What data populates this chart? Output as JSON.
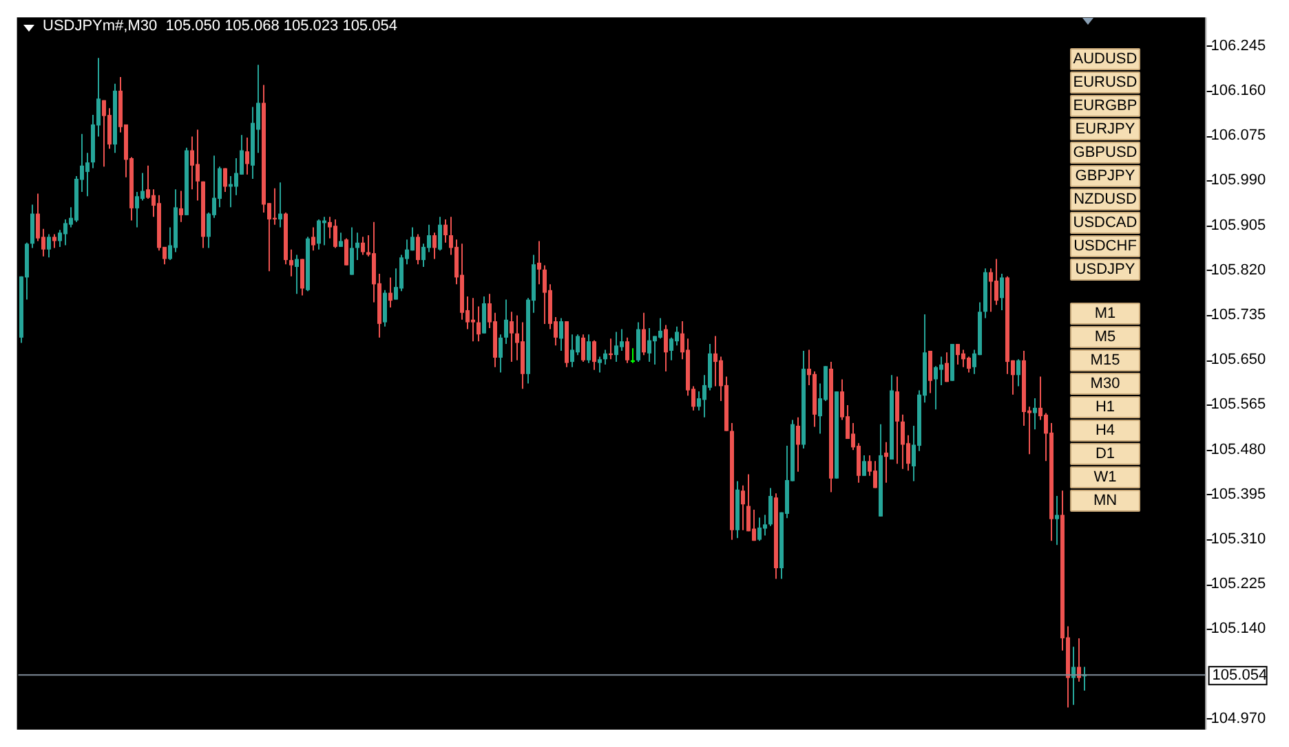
{
  "chart_data": {
    "type": "candlestick",
    "title": "USDJPYm#,M30  105.050 105.068 105.023 105.054",
    "categories": [
      null,
      null,
      null,
      null,
      null,
      null,
      null,
      null,
      null,
      null,
      null,
      null,
      null,
      null,
      null,
      null,
      null,
      null,
      null,
      null,
      null,
      null,
      null,
      null,
      null,
      null,
      null,
      null,
      null,
      null,
      null,
      null,
      null,
      null,
      null,
      null,
      null,
      null,
      null,
      null,
      null,
      null,
      null,
      null,
      null,
      null,
      null,
      null,
      null,
      null,
      null,
      null,
      null,
      null,
      null,
      null,
      null,
      null,
      null,
      null,
      null,
      null,
      null,
      null,
      null,
      null,
      null,
      null,
      null,
      null,
      null,
      null,
      null,
      null,
      null,
      null,
      null,
      null,
      null,
      null,
      null,
      null,
      null,
      null,
      null,
      null,
      null,
      null,
      null,
      null,
      null,
      null,
      null,
      null,
      null,
      null,
      null,
      null,
      null,
      null,
      null,
      null,
      null,
      null,
      null,
      null,
      null,
      null,
      null,
      null,
      null,
      null,
      null,
      null,
      null,
      null,
      null,
      null,
      null,
      null,
      null,
      null,
      null,
      null,
      null,
      null,
      null,
      null,
      null,
      null,
      null,
      null,
      null,
      null,
      null,
      null,
      null,
      null,
      null,
      null,
      null,
      null,
      null,
      null,
      null,
      null,
      null,
      null,
      null,
      null,
      null,
      null,
      null,
      null,
      null,
      null,
      null,
      null,
      null,
      null,
      null,
      null,
      null,
      null,
      null,
      null,
      null,
      null,
      null,
      null,
      null,
      null,
      null,
      null,
      null,
      null,
      null,
      null,
      null,
      null,
      null,
      null,
      null,
      null,
      null,
      null,
      null,
      null,
      null,
      null,
      null,
      null,
      null,
      null,
      null,
      null,
      null,
      null,
      null,
      null,
      null,
      null,
      null,
      null,
      null,
      null,
      null,
      null,
      null,
      null,
      null,
      null,
      null,
      null,
      null
    ],
    "ohlc": [
      [
        105.692,
        105.808,
        105.682,
        105.808
      ],
      [
        105.806,
        105.872,
        105.764,
        105.87
      ],
      [
        105.87,
        105.944,
        105.862,
        105.927
      ],
      [
        105.927,
        105.965,
        105.875,
        105.88
      ],
      [
        105.883,
        105.898,
        105.846,
        105.859
      ],
      [
        105.859,
        105.888,
        105.844,
        105.883
      ],
      [
        105.883,
        105.888,
        105.862,
        105.875
      ],
      [
        105.875,
        105.896,
        105.864,
        105.891
      ],
      [
        105.888,
        105.916,
        105.867,
        105.909
      ],
      [
        105.906,
        105.939,
        105.901,
        105.919
      ],
      [
        105.914,
        105.998,
        105.911,
        105.993
      ],
      [
        105.991,
        106.078,
        105.968,
        106.018
      ],
      [
        106.006,
        106.042,
        105.96,
        106.024
      ],
      [
        106.024,
        106.114,
        106.013,
        106.096
      ],
      [
        106.094,
        106.222,
        106.073,
        106.145
      ],
      [
        106.142,
        106.142,
        106.016,
        106.112
      ],
      [
        106.114,
        106.127,
        106.05,
        106.058
      ],
      [
        106.058,
        106.173,
        106.042,
        106.16
      ],
      [
        106.16,
        106.186,
        106.081,
        106.091
      ],
      [
        106.096,
        106.096,
        105.996,
        106.029
      ],
      [
        106.032,
        106.034,
        105.914,
        105.937
      ],
      [
        105.937,
        105.968,
        105.901,
        105.96
      ],
      [
        105.955,
        106.004,
        105.952,
        105.97
      ],
      [
        105.973,
        106.018,
        105.955,
        105.957
      ],
      [
        105.962,
        105.973,
        105.921,
        105.942
      ],
      [
        105.947,
        105.962,
        105.857,
        105.862
      ],
      [
        105.864,
        105.864,
        105.831,
        105.841
      ],
      [
        105.841,
        105.901,
        105.839,
        105.867
      ],
      [
        105.862,
        105.973,
        105.854,
        105.939
      ],
      [
        105.937,
        105.97,
        105.911,
        105.924
      ],
      [
        105.924,
        106.052,
        105.924,
        106.047
      ],
      [
        106.047,
        106.073,
        105.973,
        106.018
      ],
      [
        106.021,
        106.086,
        105.952,
        105.988
      ],
      [
        105.988,
        105.988,
        105.862,
        105.883
      ],
      [
        105.883,
        105.929,
        105.862,
        105.927
      ],
      [
        105.924,
        106.037,
        105.919,
        105.957
      ],
      [
        105.955,
        106.016,
        105.939,
        106.013
      ],
      [
        106.013,
        106.013,
        105.968,
        105.978
      ],
      [
        105.978,
        105.998,
        105.939,
        105.983
      ],
      [
        105.978,
        106.032,
        105.962,
        106.004
      ],
      [
        106.001,
        106.076,
        106.001,
        106.047
      ],
      [
        106.045,
        106.071,
        106.001,
        106.021
      ],
      [
        106.018,
        106.129,
        105.993,
        106.099
      ],
      [
        106.086,
        106.209,
        106.042,
        106.137
      ],
      [
        106.137,
        106.171,
        105.929,
        105.944
      ],
      [
        105.947,
        105.947,
        105.818,
        105.916
      ],
      [
        105.919,
        105.975,
        105.906,
        105.916
      ],
      [
        105.916,
        105.986,
        105.901,
        105.927
      ],
      [
        105.927,
        105.929,
        105.831,
        105.839
      ],
      [
        105.839,
        105.859,
        105.808,
        105.829
      ],
      [
        105.826,
        105.849,
        105.775,
        105.841
      ],
      [
        105.841,
        105.841,
        105.772,
        105.785
      ],
      [
        105.782,
        105.883,
        105.78,
        105.88
      ],
      [
        105.883,
        105.901,
        105.857,
        105.867
      ],
      [
        105.87,
        105.916,
        105.859,
        105.914
      ],
      [
        105.909,
        105.921,
        105.867,
        105.914
      ],
      [
        105.911,
        105.921,
        105.88,
        105.901
      ],
      [
        105.904,
        105.916,
        105.862,
        105.864
      ],
      [
        105.864,
        105.891,
        105.864,
        105.875
      ],
      [
        105.878,
        105.88,
        105.829,
        105.829
      ],
      [
        105.811,
        105.901,
        105.811,
        105.862
      ],
      [
        105.862,
        105.891,
        105.839,
        105.872
      ],
      [
        105.872,
        105.883,
        105.849,
        105.854
      ],
      [
        105.854,
        105.886,
        105.846,
        105.849
      ],
      [
        105.852,
        105.911,
        105.759,
        105.793
      ],
      [
        105.795,
        105.813,
        105.692,
        105.718
      ],
      [
        105.721,
        105.782,
        105.713,
        105.777
      ],
      [
        105.777,
        105.806,
        105.749,
        105.762
      ],
      [
        105.764,
        105.823,
        105.764,
        105.788
      ],
      [
        105.785,
        105.849,
        105.78,
        105.844
      ],
      [
        105.841,
        105.878,
        105.831,
        105.859
      ],
      [
        105.857,
        105.901,
        105.857,
        105.883
      ],
      [
        105.883,
        105.888,
        105.831,
        105.839
      ],
      [
        105.839,
        105.87,
        105.826,
        105.864
      ],
      [
        105.862,
        105.906,
        105.854,
        105.886
      ],
      [
        105.886,
        105.891,
        105.841,
        105.862
      ],
      [
        105.859,
        105.921,
        105.857,
        105.906
      ],
      [
        105.906,
        105.916,
        105.872,
        105.886
      ],
      [
        105.886,
        105.921,
        105.849,
        105.862
      ],
      [
        105.864,
        105.878,
        105.793,
        105.806
      ],
      [
        105.811,
        105.87,
        105.726,
        105.739
      ],
      [
        105.744,
        105.77,
        105.708,
        105.721
      ],
      [
        105.726,
        105.767,
        105.685,
        105.721
      ],
      [
        105.721,
        105.751,
        105.685,
        105.698
      ],
      [
        105.7,
        105.77,
        105.7,
        105.757
      ],
      [
        105.757,
        105.775,
        105.71,
        105.721
      ],
      [
        105.723,
        105.739,
        105.636,
        105.654
      ],
      [
        105.654,
        105.698,
        105.626,
        105.692
      ],
      [
        105.692,
        105.764,
        105.68,
        105.726
      ],
      [
        105.723,
        105.741,
        105.646,
        105.7
      ],
      [
        105.7,
        105.734,
        105.649,
        105.682
      ],
      [
        105.685,
        105.721,
        105.595,
        105.623
      ],
      [
        105.623,
        105.767,
        105.605,
        105.764
      ],
      [
        105.762,
        105.849,
        105.739,
        105.831
      ],
      [
        105.834,
        105.875,
        105.793,
        105.821
      ],
      [
        105.821,
        105.829,
        105.718,
        105.777
      ],
      [
        105.782,
        105.793,
        105.708,
        105.718
      ],
      [
        105.723,
        105.731,
        105.677,
        105.692
      ],
      [
        105.69,
        105.729,
        105.667,
        105.723
      ],
      [
        105.723,
        105.723,
        105.636,
        105.644
      ],
      [
        105.646,
        105.698,
        105.636,
        105.669
      ],
      [
        105.664,
        105.698,
        105.659,
        105.695
      ],
      [
        105.692,
        105.698,
        105.646,
        105.649
      ],
      [
        105.649,
        105.698,
        105.644,
        105.685
      ],
      [
        105.685,
        105.687,
        105.631,
        105.646
      ],
      [
        105.644,
        105.656,
        105.626,
        105.651
      ],
      [
        105.651,
        105.669,
        105.641,
        105.662
      ],
      [
        105.662,
        105.69,
        105.651,
        105.659
      ],
      [
        105.659,
        105.703,
        105.646,
        105.677
      ],
      [
        105.674,
        105.708,
        105.667,
        105.685
      ],
      [
        105.685,
        105.692,
        105.644,
        105.649
      ],
      [
        105.646,
        105.672,
        105.644,
        105.649
      ],
      [
        105.649,
        105.721,
        105.646,
        105.708
      ],
      [
        105.708,
        105.739,
        105.659,
        105.664
      ],
      [
        105.662,
        105.71,
        105.646,
        105.687
      ],
      [
        105.685,
        105.695,
        105.641,
        105.695
      ],
      [
        105.692,
        105.729,
        105.69,
        105.705
      ],
      [
        105.708,
        105.716,
        105.628,
        105.664
      ],
      [
        105.667,
        105.692,
        105.649,
        105.69
      ],
      [
        105.685,
        105.713,
        105.677,
        105.703
      ],
      [
        105.7,
        105.723,
        105.651,
        105.664
      ],
      [
        105.669,
        105.69,
        105.582,
        105.592
      ],
      [
        105.595,
        105.6,
        105.554,
        105.561
      ],
      [
        105.561,
        105.59,
        105.554,
        105.577
      ],
      [
        105.574,
        105.621,
        105.541,
        105.602
      ],
      [
        105.597,
        105.68,
        105.592,
        105.662
      ],
      [
        105.662,
        105.695,
        105.6,
        105.646
      ],
      [
        105.649,
        105.656,
        105.572,
        105.6
      ],
      [
        105.602,
        105.618,
        105.515,
        105.515
      ],
      [
        105.515,
        105.53,
        105.309,
        105.327
      ],
      [
        105.327,
        105.42,
        105.312,
        105.404
      ],
      [
        105.402,
        105.412,
        105.327,
        105.376
      ],
      [
        105.373,
        105.433,
        105.325,
        105.325
      ],
      [
        105.33,
        105.366,
        105.307,
        105.307
      ],
      [
        105.309,
        105.351,
        105.307,
        105.332
      ],
      [
        105.33,
        105.356,
        105.317,
        105.338
      ],
      [
        105.338,
        105.407,
        105.335,
        105.392
      ],
      [
        105.389,
        105.397,
        105.235,
        105.255
      ],
      [
        105.255,
        105.361,
        105.235,
        105.361
      ],
      [
        105.358,
        105.487,
        105.35,
        105.422
      ],
      [
        105.42,
        105.536,
        105.42,
        105.528
      ],
      [
        105.525,
        105.541,
        105.438,
        105.489
      ],
      [
        105.489,
        105.667,
        105.482,
        105.633
      ],
      [
        105.633,
        105.669,
        105.602,
        105.621
      ],
      [
        105.623,
        105.628,
        105.523,
        105.546
      ],
      [
        105.543,
        105.605,
        105.51,
        105.577
      ],
      [
        105.574,
        105.638,
        105.572,
        105.638
      ],
      [
        105.633,
        105.646,
        105.399,
        105.425
      ],
      [
        105.425,
        105.59,
        105.425,
        105.59
      ],
      [
        105.59,
        105.613,
        105.536,
        105.541
      ],
      [
        105.543,
        105.564,
        105.5,
        105.5
      ],
      [
        105.51,
        105.53,
        105.479,
        105.484
      ],
      [
        105.487,
        105.492,
        105.417,
        105.43
      ],
      [
        105.43,
        105.469,
        105.43,
        105.458
      ],
      [
        105.458,
        105.469,
        105.43,
        105.438
      ],
      [
        105.44,
        105.458,
        105.407,
        105.407
      ],
      [
        105.353,
        105.528,
        105.353,
        105.469
      ],
      [
        105.474,
        105.494,
        105.417,
        105.466
      ],
      [
        105.461,
        105.621,
        105.461,
        105.592
      ],
      [
        105.59,
        105.618,
        105.453,
        105.533
      ],
      [
        105.533,
        105.546,
        105.443,
        105.489
      ],
      [
        105.492,
        105.507,
        105.44,
        105.453
      ],
      [
        105.448,
        105.525,
        105.42,
        105.489
      ],
      [
        105.487,
        105.592,
        105.477,
        105.584
      ],
      [
        105.582,
        105.736,
        105.569,
        105.664
      ],
      [
        105.667,
        105.667,
        105.587,
        105.61
      ],
      [
        105.613,
        105.638,
        105.556,
        105.636
      ],
      [
        105.631,
        105.656,
        105.602,
        105.641
      ],
      [
        105.644,
        105.664,
        105.608,
        105.608
      ],
      [
        105.61,
        105.68,
        105.61,
        105.68
      ],
      [
        105.68,
        105.68,
        105.641,
        105.659
      ],
      [
        105.662,
        105.669,
        105.636,
        105.651
      ],
      [
        105.654,
        105.656,
        105.626,
        105.633
      ],
      [
        105.636,
        105.669,
        105.623,
        105.662
      ],
      [
        105.659,
        105.759,
        105.659,
        105.741
      ],
      [
        105.741,
        105.823,
        105.729,
        105.816
      ],
      [
        105.816,
        105.823,
        105.741,
        105.798
      ],
      [
        105.8,
        105.841,
        105.754,
        105.762
      ],
      [
        105.767,
        105.813,
        105.744,
        105.806
      ],
      [
        105.806,
        105.808,
        105.623,
        105.646
      ],
      [
        105.649,
        105.649,
        105.584,
        105.621
      ],
      [
        105.621,
        105.651,
        105.6,
        105.649
      ],
      [
        105.649,
        105.667,
        105.525,
        105.551
      ],
      [
        105.554,
        105.561,
        105.471,
        105.549
      ],
      [
        105.549,
        105.577,
        105.518,
        105.559
      ],
      [
        105.559,
        105.618,
        105.536,
        105.543
      ],
      [
        105.546,
        105.549,
        105.458,
        105.51
      ],
      [
        105.512,
        105.53,
        105.307,
        105.348
      ],
      [
        105.348,
        105.392,
        105.299,
        105.356
      ],
      [
        105.356,
        105.402,
        105.099,
        105.122
      ],
      [
        105.124,
        105.145,
        104.991,
        105.047
      ],
      [
        105.047,
        105.106,
        104.996,
        105.068
      ],
      [
        105.068,
        105.122,
        105.04,
        105.047
      ],
      [
        105.05,
        105.068,
        105.023,
        105.054
      ],
      null,
      null,
      null,
      null,
      null,
      null,
      null,
      null,
      null,
      null,
      null,
      null,
      null,
      null,
      null,
      null,
      null,
      null,
      null,
      null,
      null
    ],
    "colors": [
      "#26a69a",
      "#26a69a",
      "#26a69a",
      "#ef5350",
      "#ef5350",
      "#26a69a",
      "#ef5350",
      "#26a69a",
      "#26a69a",
      "#26a69a",
      "#26a69a",
      "#26a69a",
      "#26a69a",
      "#26a69a",
      "#26a69a",
      "#ef5350",
      "#ef5350",
      "#26a69a",
      "#ef5350",
      "#ef5350",
      "#ef5350",
      "#26a69a",
      "#26a69a",
      "#ef5350",
      "#ef5350",
      "#ef5350",
      "#ef5350",
      "#26a69a",
      "#26a69a",
      "#ef5350",
      "#26a69a",
      "#ef5350",
      "#ef5350",
      "#ef5350",
      "#26a69a",
      "#26a69a",
      "#26a69a",
      "#ef5350",
      "#26a69a",
      "#26a69a",
      "#26a69a",
      "#ef5350",
      "#26a69a",
      "#26a69a",
      "#ef5350",
      "#ef5350",
      "#ef5350",
      "#26a69a",
      "#ef5350",
      "#ef5350",
      "#26a69a",
      "#ef5350",
      "#26a69a",
      "#ef5350",
      "#26a69a",
      "#26a69a",
      "#ef5350",
      "#ef5350",
      "#26a69a",
      "#ef5350",
      "#26a69a",
      "#26a69a",
      "#ef5350",
      "#ef5350",
      "#ef5350",
      "#ef5350",
      "#26a69a",
      "#ef5350",
      "#26a69a",
      "#26a69a",
      "#26a69a",
      "#26a69a",
      "#ef5350",
      "#26a69a",
      "#26a69a",
      "#ef5350",
      "#26a69a",
      "#ef5350",
      "#ef5350",
      "#ef5350",
      "#ef5350",
      "#ef5350",
      "#ef5350",
      "#ef5350",
      "#26a69a",
      "#ef5350",
      "#ef5350",
      "#26a69a",
      "#26a69a",
      "#ef5350",
      "#ef5350",
      "#ef5350",
      "#26a69a",
      "#26a69a",
      "#ef5350",
      "#ef5350",
      "#ef5350",
      "#ef5350",
      "#26a69a",
      "#ef5350",
      "#26a69a",
      "#26a69a",
      "#ef5350",
      "#26a69a",
      "#ef5350",
      "#26a69a",
      "#26a69a",
      "#ef5350",
      "#26a69a",
      "#26a69a",
      "#ef5350",
      "#00ff00",
      "#26a69a",
      "#ef5350",
      "#26a69a",
      "#26a69a",
      "#26a69a",
      "#ef5350",
      "#26a69a",
      "#26a69a",
      "#ef5350",
      "#ef5350",
      "#ef5350",
      "#26a69a",
      "#26a69a",
      "#26a69a",
      "#ef5350",
      "#ef5350",
      "#ef5350",
      "#ef5350",
      "#26a69a",
      "#ef5350",
      "#ef5350",
      "#ef5350",
      "#26a69a",
      "#26a69a",
      "#26a69a",
      "#ef5350",
      "#26a69a",
      "#26a69a",
      "#26a69a",
      "#ef5350",
      "#26a69a",
      "#ef5350",
      "#ef5350",
      "#26a69a",
      "#26a69a",
      "#ef5350",
      "#26a69a",
      "#ef5350",
      "#ef5350",
      "#ef5350",
      "#ef5350",
      "#26a69a",
      "#ef5350",
      "#ef5350",
      "#26a69a",
      "#ef5350",
      "#26a69a",
      "#ef5350",
      "#ef5350",
      "#ef5350",
      "#26a69a",
      "#26a69a",
      "#26a69a",
      "#ef5350",
      "#26a69a",
      "#26a69a",
      "#ef5350",
      "#26a69a",
      "#ef5350",
      "#ef5350",
      "#ef5350",
      "#26a69a",
      "#26a69a",
      "#26a69a",
      "#ef5350",
      "#ef5350",
      "#26a69a",
      "#ef5350",
      "#ef5350",
      "#26a69a",
      "#ef5350",
      "#ef5350",
      "#26a69a",
      "#ef5350",
      "#ef5350",
      "#ef5350",
      "#26a69a",
      "#ef5350",
      "#ef5350",
      "#26a69a",
      "#ef5350",
      "#26a69a",
      null,
      null,
      null,
      null,
      null,
      null,
      null,
      null,
      null,
      null,
      null,
      null,
      null,
      null,
      null,
      null,
      null,
      null,
      null,
      null,
      null
    ],
    "ylim": [
      104.949,
      106.299
    ],
    "yticks": [
      106.245,
      {
        "value": 106.16,
        "label": "106.160"
      },
      106.075,
      {
        "value": 105.99,
        "label": "105.990"
      },
      105.905,
      {
        "value": 105.82,
        "label": "105.820"
      },
      105.735,
      {
        "value": 105.65,
        "label": "105.650"
      },
      105.565,
      {
        "value": 105.48,
        "label": "105.480"
      },
      105.395,
      {
        "value": 105.31,
        "label": "105.310"
      },
      105.225,
      {
        "value": 105.14,
        "label": "105.140"
      },
      {
        "value": 104.97,
        "label": "104.970"
      }
    ],
    "tick_labels": "y",
    "grid": false,
    "legend": false,
    "ref_lines": [
      {
        "axis": "y",
        "value": 105.054,
        "label": "105.054",
        "color": "#7f8c99"
      }
    ],
    "annotations": [
      "AUDUSD",
      "EURUSD",
      "EURGBP",
      "EURJPY",
      "GBPUSD",
      "GBPJPY",
      "NZDUSD",
      "USDCAD",
      "USDCHF",
      "USDJPY",
      "M1",
      "M5",
      "M15",
      "M30",
      "H1",
      "H4",
      "D1",
      "W1",
      "MN"
    ]
  }
}
